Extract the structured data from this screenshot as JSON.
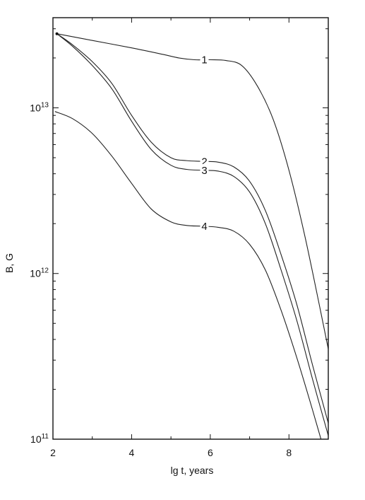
{
  "chart_data": {
    "type": "line",
    "title": "",
    "xlabel": "lg t, years",
    "ylabel": "B, G",
    "xlim": [
      2,
      9
    ],
    "ylim": [
      100000000000.0,
      35000000000000.0
    ],
    "y_scale": "log",
    "grid": false,
    "x_ticks": [
      {
        "value": 2,
        "label": "2"
      },
      {
        "value": 4,
        "label": "4"
      },
      {
        "value": 6,
        "label": "6"
      },
      {
        "value": 8,
        "label": "8"
      }
    ],
    "y_ticks": [
      {
        "value": 100000000000.0,
        "base": "10",
        "exp": "11"
      },
      {
        "value": 1000000000000.0,
        "base": "10",
        "exp": "12"
      },
      {
        "value": 10000000000000.0,
        "base": "10",
        "exp": "13"
      }
    ],
    "series": [
      {
        "name": "1",
        "label_x": 5.85,
        "x": [
          2.1,
          3.0,
          4.0,
          4.8,
          5.2,
          5.6,
          6.0,
          6.4,
          6.8,
          7.2,
          7.6,
          8.0,
          8.4,
          8.8,
          9.0
        ],
        "y": [
          28000000000000.0,
          25500000000000.0,
          23000000000000.0,
          21000000000000.0,
          20000000000000.0,
          19500000000000.0,
          19500000000000.0,
          19300000000000.0,
          18000000000000.0,
          13500000000000.0,
          8500000000000.0,
          4200000000000.0,
          1700000000000.0,
          600000000000.0,
          350000000000.0
        ]
      },
      {
        "name": "2",
        "label_x": 5.85,
        "x": [
          2.1,
          2.5,
          3.0,
          3.5,
          4.0,
          4.5,
          5.0,
          5.4,
          5.8,
          6.2,
          6.6,
          7.0,
          7.4,
          7.8,
          8.2,
          8.6,
          9.0
        ],
        "y": [
          28000000000000.0,
          24000000000000.0,
          19000000000000.0,
          14000000000000.0,
          9000000000000.0,
          6200000000000.0,
          5000000000000.0,
          4800000000000.0,
          4750000000000.0,
          4700000000000.0,
          4400000000000.0,
          3600000000000.0,
          2400000000000.0,
          1300000000000.0,
          650000000000.0,
          280000000000.0,
          125000000000.0
        ]
      },
      {
        "name": "3",
        "label_x": 5.85,
        "x": [
          2.1,
          2.5,
          3.0,
          3.5,
          4.0,
          4.5,
          5.0,
          5.4,
          5.8,
          6.2,
          6.6,
          7.0,
          7.4,
          7.8,
          8.2,
          8.6,
          9.0
        ],
        "y": [
          28000000000000.0,
          23500000000000.0,
          18000000000000.0,
          13000000000000.0,
          8300000000000.0,
          5600000000000.0,
          4500000000000.0,
          4250000000000.0,
          4200000000000.0,
          4150000000000.0,
          3850000000000.0,
          3100000000000.0,
          2000000000000.0,
          1050000000000.0,
          520000000000.0,
          230000000000.0,
          105000000000.0
        ]
      },
      {
        "name": "4",
        "label_x": 5.85,
        "x": [
          2.05,
          2.5,
          3.0,
          3.5,
          4.0,
          4.5,
          5.0,
          5.4,
          5.8,
          6.2,
          6.6,
          7.0,
          7.4,
          7.8,
          8.2,
          8.6,
          9.0
        ],
        "y": [
          9500000000000.0,
          8600000000000.0,
          7000000000000.0,
          5100000000000.0,
          3500000000000.0,
          2450000000000.0,
          2050000000000.0,
          1950000000000.0,
          1930000000000.0,
          1900000000000.0,
          1800000000000.0,
          1500000000000.0,
          1050000000000.0,
          600000000000.0,
          310000000000.0,
          150000000000.0,
          70000000000.0
        ]
      }
    ]
  }
}
